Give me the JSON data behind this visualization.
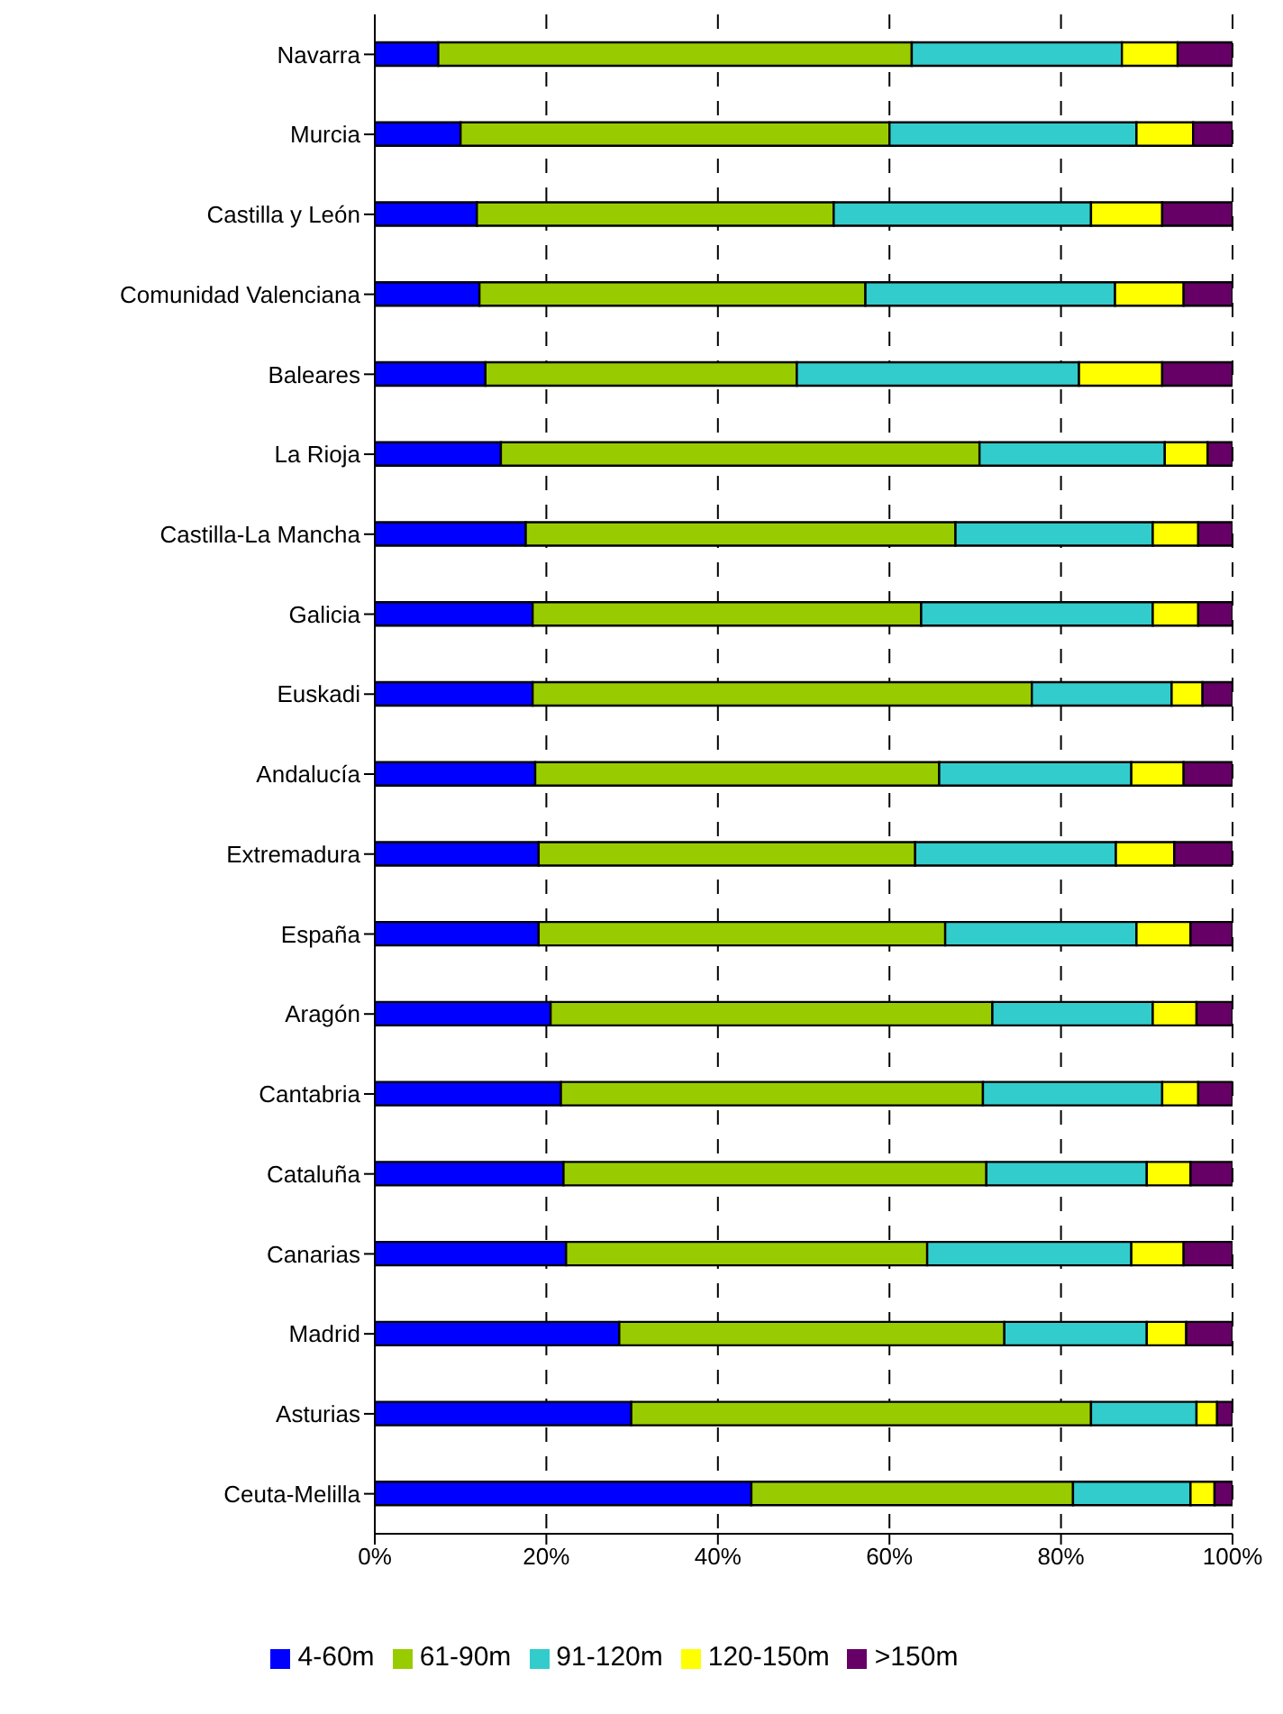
{
  "chart_data": {
    "type": "bar",
    "orientation": "horizontal",
    "stacked": true,
    "categories": [
      "Navarra",
      "Murcia",
      "Castilla y León",
      "Comunidad Valenciana",
      "Baleares",
      "La Rioja",
      "Castilla-La Mancha",
      "Galicia",
      "Euskadi",
      "Andalucía",
      "Extremadura",
      "España",
      "Aragón",
      "Cantabria",
      "Cataluña",
      "Canarias",
      "Madrid",
      "Asturias",
      "Ceuta-Melilla"
    ],
    "series": [
      {
        "name": "4-60m",
        "color": "#0000ff",
        "values": [
          7.4,
          10.0,
          11.9,
          12.2,
          12.9,
          14.7,
          17.6,
          18.4,
          18.4,
          18.7,
          19.1,
          19.1,
          20.5,
          21.7,
          22.0,
          22.3,
          28.5,
          29.9,
          43.9
        ]
      },
      {
        "name": "61-90m",
        "color": "#99cc00",
        "values": [
          55.2,
          50.0,
          41.6,
          45.0,
          36.3,
          55.8,
          50.1,
          45.3,
          58.2,
          47.1,
          43.9,
          47.4,
          51.5,
          49.2,
          49.3,
          42.1,
          44.9,
          53.6,
          37.5
        ]
      },
      {
        "name": "91-120m",
        "color": "#33cccc",
        "values": [
          24.5,
          28.8,
          30.0,
          29.1,
          32.9,
          21.6,
          23.0,
          27.0,
          16.3,
          22.4,
          23.4,
          22.3,
          18.7,
          20.9,
          18.7,
          23.8,
          16.6,
          12.3,
          13.7
        ]
      },
      {
        "name": "120-150m",
        "color": "#ffff00",
        "values": [
          6.5,
          6.6,
          8.3,
          8.0,
          9.7,
          5.0,
          5.3,
          5.3,
          3.6,
          6.1,
          6.8,
          6.3,
          5.1,
          4.2,
          5.1,
          6.1,
          4.6,
          2.4,
          2.8
        ]
      },
      {
        "name": ">150m",
        "color": "#660066",
        "values": [
          6.4,
          4.6,
          8.2,
          5.7,
          8.2,
          2.9,
          4.0,
          4.0,
          3.5,
          5.7,
          6.8,
          4.9,
          4.2,
          4.0,
          4.9,
          5.7,
          5.4,
          1.8,
          2.1
        ]
      }
    ],
    "xlim": [
      0,
      100
    ],
    "xticks": [
      {
        "value": 0,
        "label": "0%"
      },
      {
        "value": 20,
        "label": "20%"
      },
      {
        "value": 40,
        "label": "40%"
      },
      {
        "value": 60,
        "label": "60%"
      },
      {
        "value": 80,
        "label": "80%"
      },
      {
        "value": 100,
        "label": "100%"
      }
    ],
    "grid": "x",
    "legend": "bottom"
  }
}
